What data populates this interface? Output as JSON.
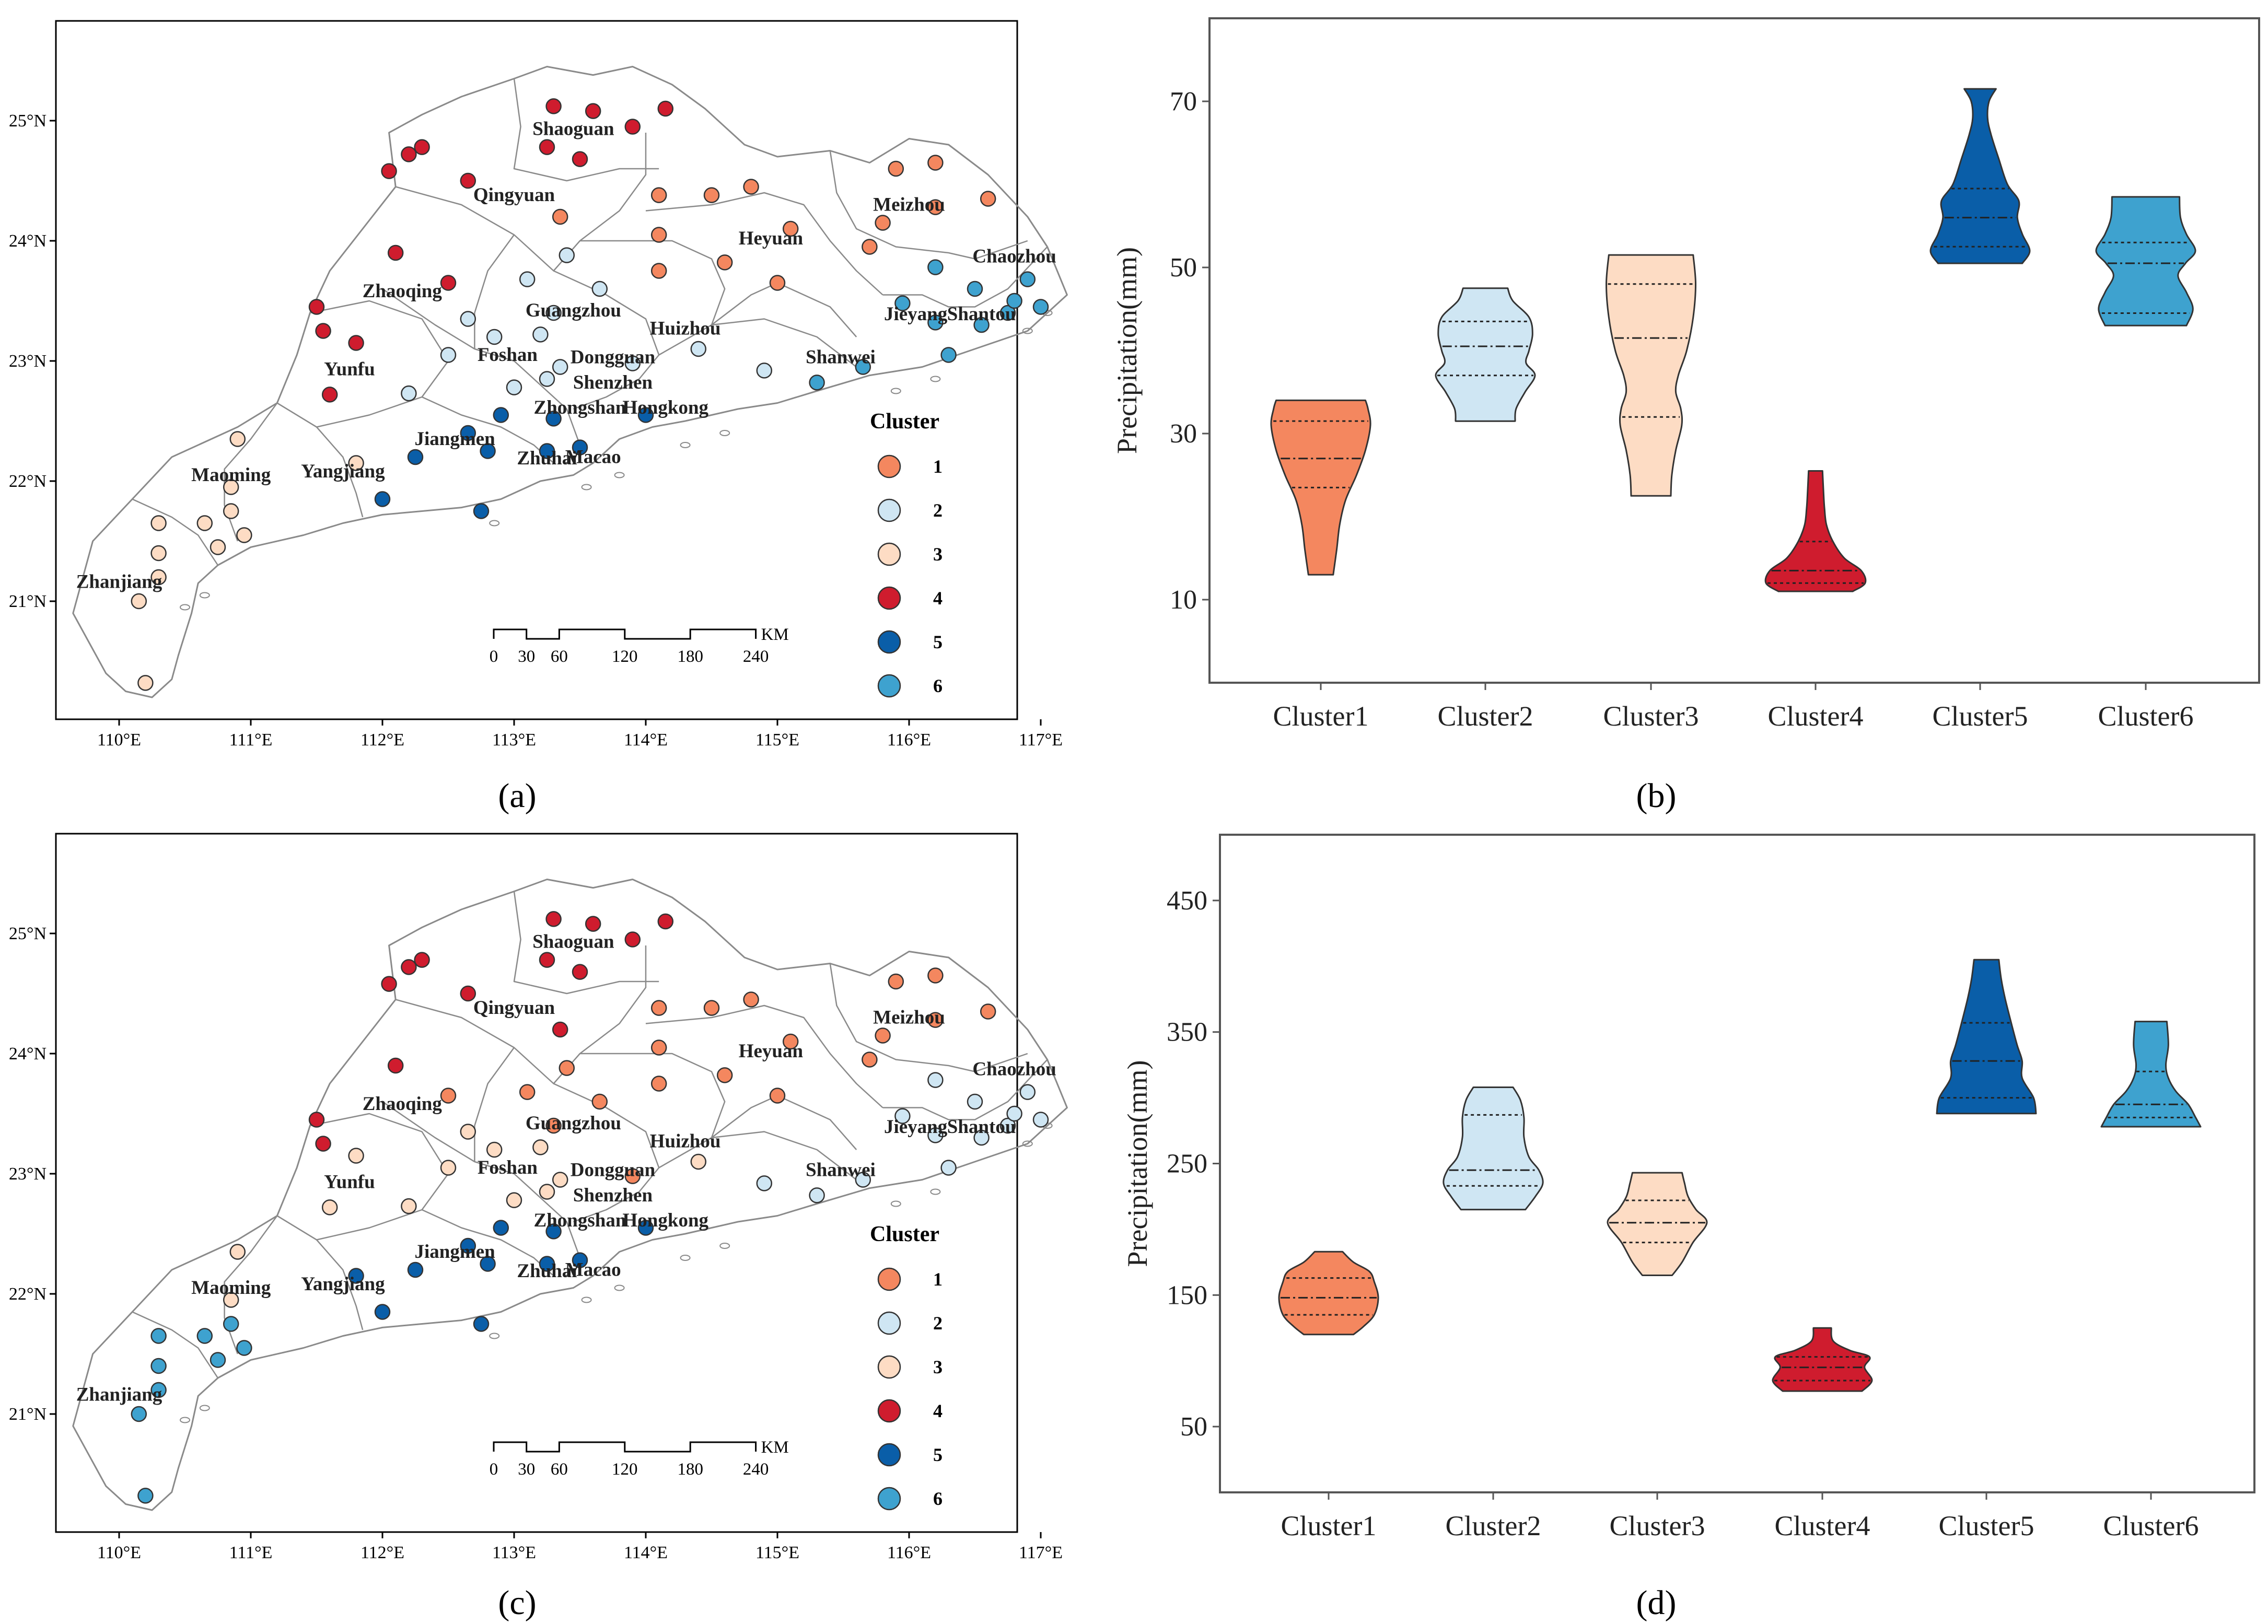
{
  "colors": {
    "cluster1": "#f4875f",
    "cluster2": "#cfe6f3",
    "cluster3": "#fddcc4",
    "cluster4": "#cf1c2e",
    "cluster5": "#0a5ea8",
    "cluster6": "#3ea2cf",
    "outline": "#333333",
    "boundary": "#8a8a8a"
  },
  "panels": {
    "a": {
      "label": "(a)"
    },
    "b": {
      "label": "(b)"
    },
    "c": {
      "label": "(c)"
    },
    "d": {
      "label": "(d)"
    }
  },
  "maps": {
    "lon_ticks": [
      "110°E",
      "111°E",
      "112°E",
      "113°E",
      "114°E",
      "115°E",
      "116°E",
      "117°E"
    ],
    "lat_ticks": [
      "25°N",
      "24°N",
      "23°N",
      "22°N",
      "21°N"
    ],
    "legend_title": "Cluster",
    "legend_items": [
      "1",
      "2",
      "3",
      "4",
      "5",
      "6"
    ],
    "scale_labels": [
      "0",
      "30",
      "60",
      "120",
      "180",
      "240"
    ],
    "scale_unit": "KM",
    "cities": [
      "Shaoguan",
      "Qingyuan",
      "Meizhou",
      "Heyuan",
      "Chaozhou",
      "Zhaoqing",
      "Guangzhou",
      "Huizhou",
      "Jieyang",
      "Shantou",
      "Foshan",
      "Dongguan",
      "Yunfu",
      "Shanwei",
      "Shenzhen",
      "Zhongshan",
      "Hongkong",
      "Jiangmen",
      "Maoming",
      "Yangjiang",
      "Zhuhai",
      "Macao",
      "Zhanjiang"
    ],
    "stations_lonlat": [
      [
        113.3,
        25.12
      ],
      [
        113.6,
        25.08
      ],
      [
        113.9,
        24.95
      ],
      [
        114.15,
        25.1
      ],
      [
        113.25,
        24.78
      ],
      [
        113.5,
        24.68
      ],
      [
        112.3,
        24.78
      ],
      [
        112.2,
        24.72
      ],
      [
        112.05,
        24.58
      ],
      [
        112.65,
        24.5
      ],
      [
        113.35,
        24.2
      ],
      [
        114.1,
        24.38
      ],
      [
        114.5,
        24.38
      ],
      [
        114.8,
        24.45
      ],
      [
        115.1,
        24.1
      ],
      [
        114.1,
        24.05
      ],
      [
        115.9,
        24.6
      ],
      [
        116.2,
        24.65
      ],
      [
        116.6,
        24.35
      ],
      [
        116.2,
        24.28
      ],
      [
        115.8,
        24.15
      ],
      [
        115.7,
        23.95
      ],
      [
        114.1,
        23.75
      ],
      [
        114.6,
        23.82
      ],
      [
        115.0,
        23.65
      ],
      [
        112.1,
        23.9
      ],
      [
        112.5,
        23.65
      ],
      [
        111.5,
        23.45
      ],
      [
        111.55,
        23.25
      ],
      [
        111.8,
        23.15
      ],
      [
        111.6,
        22.72
      ],
      [
        112.65,
        23.35
      ],
      [
        112.85,
        23.2
      ],
      [
        113.1,
        23.68
      ],
      [
        113.4,
        23.88
      ],
      [
        113.3,
        23.4
      ],
      [
        113.65,
        23.6
      ],
      [
        113.2,
        23.22
      ],
      [
        112.5,
        23.05
      ],
      [
        112.2,
        22.73
      ],
      [
        113.25,
        22.85
      ],
      [
        113.35,
        22.95
      ],
      [
        113.9,
        22.98
      ],
      [
        114.4,
        23.1
      ],
      [
        114.9,
        22.92
      ],
      [
        113.0,
        22.78
      ],
      [
        112.9,
        22.55
      ],
      [
        113.3,
        22.52
      ],
      [
        112.65,
        22.4
      ],
      [
        112.8,
        22.25
      ],
      [
        112.25,
        22.2
      ],
      [
        113.25,
        22.25
      ],
      [
        113.5,
        22.28
      ],
      [
        114.0,
        22.55
      ],
      [
        112.0,
        21.85
      ],
      [
        112.75,
        21.75
      ],
      [
        116.2,
        23.78
      ],
      [
        116.5,
        23.6
      ],
      [
        116.75,
        23.4
      ],
      [
        116.8,
        23.5
      ],
      [
        116.55,
        23.3
      ],
      [
        116.9,
        23.68
      ],
      [
        117.0,
        23.45
      ],
      [
        115.95,
        23.48
      ],
      [
        116.2,
        23.32
      ],
      [
        116.3,
        23.05
      ],
      [
        115.65,
        22.95
      ],
      [
        115.3,
        22.82
      ],
      [
        110.9,
        22.35
      ],
      [
        111.8,
        22.15
      ],
      [
        110.85,
        21.95
      ],
      [
        110.65,
        21.65
      ],
      [
        110.85,
        21.75
      ],
      [
        110.95,
        21.55
      ],
      [
        110.75,
        21.45
      ],
      [
        110.3,
        21.65
      ],
      [
        110.3,
        21.4
      ],
      [
        110.3,
        21.2
      ],
      [
        110.15,
        21.0
      ],
      [
        110.2,
        20.32
      ]
    ],
    "a": {
      "station_clusters": [
        4,
        4,
        4,
        4,
        4,
        4,
        4,
        4,
        4,
        4,
        1,
        1,
        1,
        1,
        1,
        1,
        1,
        1,
        1,
        1,
        1,
        1,
        1,
        1,
        1,
        4,
        4,
        4,
        4,
        4,
        4,
        2,
        2,
        2,
        2,
        2,
        2,
        2,
        2,
        2,
        2,
        2,
        2,
        2,
        2,
        2,
        5,
        5,
        5,
        5,
        5,
        5,
        5,
        5,
        5,
        5,
        6,
        6,
        6,
        6,
        6,
        6,
        6,
        6,
        6,
        6,
        6,
        6,
        3,
        3,
        3,
        3,
        3,
        3,
        3,
        3,
        3,
        3,
        3,
        3
      ]
    },
    "c": {
      "station_clusters": [
        4,
        4,
        4,
        4,
        4,
        4,
        4,
        4,
        4,
        4,
        4,
        1,
        1,
        1,
        1,
        1,
        1,
        1,
        1,
        1,
        1,
        1,
        1,
        1,
        1,
        4,
        1,
        4,
        4,
        3,
        3,
        3,
        3,
        1,
        1,
        1,
        1,
        3,
        3,
        3,
        3,
        3,
        1,
        3,
        2,
        3,
        5,
        5,
        5,
        5,
        5,
        5,
        5,
        5,
        5,
        5,
        2,
        2,
        2,
        2,
        2,
        2,
        2,
        2,
        2,
        2,
        2,
        2,
        3,
        5,
        3,
        6,
        6,
        6,
        6,
        6,
        6,
        6,
        6,
        6
      ]
    }
  },
  "chart_data": [
    {
      "type": "violin",
      "panel": "b",
      "title": "",
      "xlabel": "",
      "ylabel": "Precipitation(mm)",
      "ylim": [
        0,
        80
      ],
      "yticks": [
        10,
        30,
        50,
        70
      ],
      "categories": [
        "Cluster1",
        "Cluster2",
        "Cluster3",
        "Cluster4",
        "Cluster5",
        "Cluster6"
      ],
      "series": [
        {
          "name": "Cluster1",
          "min": 13,
          "max": 34,
          "q1": 23.5,
          "median": 27,
          "q3": 31.5,
          "profile": [
            [
              13,
              0.25
            ],
            [
              16,
              0.32
            ],
            [
              19,
              0.38
            ],
            [
              22,
              0.5
            ],
            [
              25,
              0.72
            ],
            [
              28,
              0.9
            ],
            [
              31,
              1.0
            ],
            [
              33,
              0.95
            ],
            [
              34,
              0.9
            ]
          ]
        },
        {
          "name": "Cluster2",
          "min": 31.5,
          "max": 47.5,
          "q1": 37,
          "median": 40.5,
          "q3": 43.5,
          "profile": [
            [
              31.5,
              0.6
            ],
            [
              33,
              0.62
            ],
            [
              35,
              0.8
            ],
            [
              37,
              1.0
            ],
            [
              38.5,
              0.82
            ],
            [
              40,
              0.88
            ],
            [
              42,
              0.95
            ],
            [
              44,
              0.88
            ],
            [
              46,
              0.55
            ],
            [
              47.5,
              0.45
            ]
          ]
        },
        {
          "name": "Cluster3",
          "min": 22.5,
          "max": 51.5,
          "q1": 32,
          "median": 41.5,
          "q3": 48,
          "profile": [
            [
              22.5,
              0.4
            ],
            [
              25,
              0.42
            ],
            [
              28,
              0.5
            ],
            [
              31,
              0.62
            ],
            [
              33,
              0.6
            ],
            [
              35,
              0.5
            ],
            [
              37,
              0.55
            ],
            [
              40,
              0.72
            ],
            [
              44,
              0.85
            ],
            [
              48,
              0.9
            ],
            [
              51.5,
              0.85
            ]
          ]
        },
        {
          "name": "Cluster4",
          "min": 11,
          "max": 25.5,
          "q1": 12,
          "median": 13.5,
          "q3": 17,
          "profile": [
            [
              11,
              0.75
            ],
            [
              12,
              1.0
            ],
            [
              13.5,
              0.92
            ],
            [
              15,
              0.58
            ],
            [
              17,
              0.35
            ],
            [
              19,
              0.22
            ],
            [
              21,
              0.18
            ],
            [
              23,
              0.16
            ],
            [
              25.5,
              0.14
            ]
          ]
        },
        {
          "name": "Cluster5",
          "min": 50.5,
          "max": 71.5,
          "q1": 52.5,
          "median": 56,
          "q3": 59.5,
          "profile": [
            [
              50.5,
              0.85
            ],
            [
              52,
              1.0
            ],
            [
              54,
              0.85
            ],
            [
              56,
              0.75
            ],
            [
              58,
              0.78
            ],
            [
              60,
              0.55
            ],
            [
              63,
              0.38
            ],
            [
              66,
              0.22
            ],
            [
              68,
              0.15
            ],
            [
              70,
              0.18
            ],
            [
              71.5,
              0.32
            ]
          ]
        },
        {
          "name": "Cluster6",
          "min": 43,
          "max": 58.5,
          "q1": 44.5,
          "median": 50.5,
          "q3": 53,
          "profile": [
            [
              43,
              0.82
            ],
            [
              45,
              0.95
            ],
            [
              47,
              0.82
            ],
            [
              49,
              0.65
            ],
            [
              50.5,
              0.8
            ],
            [
              52,
              1.0
            ],
            [
              54,
              0.82
            ],
            [
              56,
              0.7
            ],
            [
              58.5,
              0.68
            ]
          ]
        }
      ]
    },
    {
      "type": "violin",
      "panel": "d",
      "title": "",
      "xlabel": "",
      "ylabel": "Precipitation(mm)",
      "ylim": [
        0,
        500
      ],
      "yticks": [
        50,
        150,
        250,
        350,
        450
      ],
      "categories": [
        "Cluster1",
        "Cluster2",
        "Cluster3",
        "Cluster4",
        "Cluster5",
        "Cluster6"
      ],
      "series": [
        {
          "name": "Cluster1",
          "min": 120,
          "max": 183,
          "q1": 135,
          "median": 148,
          "q3": 163,
          "profile": [
            [
              120,
              0.5
            ],
            [
              126,
              0.7
            ],
            [
              135,
              0.92
            ],
            [
              148,
              1.0
            ],
            [
              160,
              0.92
            ],
            [
              168,
              0.82
            ],
            [
              175,
              0.5
            ],
            [
              183,
              0.28
            ]
          ]
        },
        {
          "name": "Cluster2",
          "min": 215,
          "max": 308,
          "q1": 233,
          "median": 245,
          "q3": 287,
          "profile": [
            [
              215,
              0.65
            ],
            [
              225,
              0.85
            ],
            [
              235,
              1.0
            ],
            [
              245,
              0.92
            ],
            [
              255,
              0.72
            ],
            [
              270,
              0.62
            ],
            [
              285,
              0.62
            ],
            [
              298,
              0.55
            ],
            [
              308,
              0.4
            ]
          ]
        },
        {
          "name": "Cluster3",
          "min": 165,
          "max": 243,
          "q1": 190,
          "median": 205,
          "q3": 222,
          "profile": [
            [
              165,
              0.3
            ],
            [
              175,
              0.5
            ],
            [
              190,
              0.72
            ],
            [
              205,
              1.0
            ],
            [
              215,
              0.78
            ],
            [
              225,
              0.62
            ],
            [
              235,
              0.55
            ],
            [
              243,
              0.5
            ]
          ]
        },
        {
          "name": "Cluster4",
          "min": 77,
          "max": 125,
          "q1": 85,
          "median": 95,
          "q3": 103,
          "profile": [
            [
              77,
              0.8
            ],
            [
              85,
              1.0
            ],
            [
              95,
              0.85
            ],
            [
              103,
              0.95
            ],
            [
              108,
              0.55
            ],
            [
              115,
              0.22
            ],
            [
              125,
              0.18
            ]
          ]
        },
        {
          "name": "Cluster5",
          "min": 288,
          "max": 405,
          "q1": 300,
          "median": 328,
          "q3": 357,
          "profile": [
            [
              288,
              1.0
            ],
            [
              300,
              0.95
            ],
            [
              315,
              0.72
            ],
            [
              328,
              0.72
            ],
            [
              340,
              0.62
            ],
            [
              357,
              0.5
            ],
            [
              375,
              0.38
            ],
            [
              390,
              0.3
            ],
            [
              405,
              0.25
            ]
          ]
        },
        {
          "name": "Cluster6",
          "min": 278,
          "max": 358,
          "q1": 285,
          "median": 295,
          "q3": 320,
          "profile": [
            [
              278,
              1.0
            ],
            [
              285,
              0.9
            ],
            [
              295,
              0.75
            ],
            [
              305,
              0.5
            ],
            [
              315,
              0.35
            ],
            [
              325,
              0.3
            ],
            [
              340,
              0.35
            ],
            [
              358,
              0.32
            ]
          ]
        }
      ]
    }
  ]
}
